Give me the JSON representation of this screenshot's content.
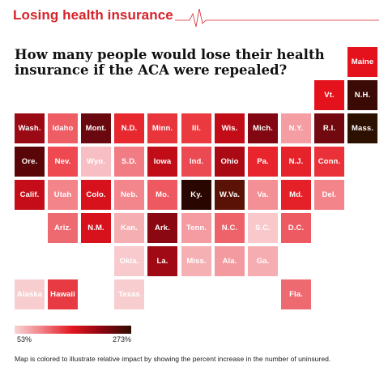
{
  "header": {
    "section_title": "Losing health insurance",
    "headline_line1": "How many people would lose their health",
    "headline_line2": "insurance if the ACA were repealed?"
  },
  "legend": {
    "min_label": "53%",
    "max_label": "273%"
  },
  "caption": "Map is colored to illustrate relative impact by showing the percent increase in the number of uninsured.",
  "map": {
    "tiles": [
      {
        "label": "Maine",
        "col": 10,
        "row": 0,
        "color": "#e3121c"
      },
      {
        "label": "Vt.",
        "col": 9,
        "row": 1,
        "color": "#e3121c"
      },
      {
        "label": "N.H.",
        "col": 10,
        "row": 1,
        "color": "#3c0a05"
      },
      {
        "label": "Wash.",
        "col": 0,
        "row": 2,
        "color": "#9a0a14"
      },
      {
        "label": "Idaho",
        "col": 1,
        "row": 2,
        "color": "#ee5c64"
      },
      {
        "label": "Mont.",
        "col": 2,
        "row": 2,
        "color": "#6a0810"
      },
      {
        "label": "N.D.",
        "col": 3,
        "row": 2,
        "color": "#e8282f"
      },
      {
        "label": "Minn.",
        "col": 4,
        "row": 2,
        "color": "#e8353c"
      },
      {
        "label": "Ill.",
        "col": 5,
        "row": 2,
        "color": "#ea3a40"
      },
      {
        "label": "Wis.",
        "col": 6,
        "row": 2,
        "color": "#c20d18"
      },
      {
        "label": "Mich.",
        "col": 7,
        "row": 2,
        "color": "#820712"
      },
      {
        "label": "N.Y.",
        "col": 8,
        "row": 2,
        "color": "#f49ea3"
      },
      {
        "label": "R.I.",
        "col": 9,
        "row": 2,
        "color": "#720810"
      },
      {
        "label": "Mass.",
        "col": 10,
        "row": 2,
        "color": "#2c1000"
      },
      {
        "label": "Ore.",
        "col": 0,
        "row": 3,
        "color": "#5a0608"
      },
      {
        "label": "Nev.",
        "col": 1,
        "row": 3,
        "color": "#ee4850"
      },
      {
        "label": "Wyo.",
        "col": 2,
        "row": 3,
        "color": "#f7bfc3"
      },
      {
        "label": "S.D.",
        "col": 3,
        "row": 3,
        "color": "#f27c83"
      },
      {
        "label": "Iowa",
        "col": 4,
        "row": 3,
        "color": "#c00d18"
      },
      {
        "label": "Ind.",
        "col": 5,
        "row": 3,
        "color": "#ec4a52"
      },
      {
        "label": "Ohio",
        "col": 6,
        "row": 3,
        "color": "#aa0a14"
      },
      {
        "label": "Pa.",
        "col": 7,
        "row": 3,
        "color": "#e8252d"
      },
      {
        "label": "N.J.",
        "col": 8,
        "row": 3,
        "color": "#e6222a"
      },
      {
        "label": "Conn.",
        "col": 9,
        "row": 3,
        "color": "#ea3038"
      },
      {
        "label": "Calif.",
        "col": 0,
        "row": 4,
        "color": "#c40d18"
      },
      {
        "label": "Utah",
        "col": 1,
        "row": 4,
        "color": "#f2848a"
      },
      {
        "label": "Colo.",
        "col": 2,
        "row": 4,
        "color": "#d8121c"
      },
      {
        "label": "Neb.",
        "col": 3,
        "row": 4,
        "color": "#f2868c"
      },
      {
        "label": "Mo.",
        "col": 4,
        "row": 4,
        "color": "#ee5860"
      },
      {
        "label": "Ky.",
        "col": 5,
        "row": 4,
        "color": "#2a0600"
      },
      {
        "label": "W.Va.",
        "col": 6,
        "row": 4,
        "color": "#5a1206"
      },
      {
        "label": "Va.",
        "col": 7,
        "row": 4,
        "color": "#f29096"
      },
      {
        "label": "Md.",
        "col": 8,
        "row": 4,
        "color": "#e42028"
      },
      {
        "label": "Del.",
        "col": 9,
        "row": 4,
        "color": "#f2848a"
      },
      {
        "label": "Ariz.",
        "col": 1,
        "row": 5,
        "color": "#ee6a71"
      },
      {
        "label": "N.M.",
        "col": 2,
        "row": 5,
        "color": "#d8121c"
      },
      {
        "label": "Kan.",
        "col": 3,
        "row": 5,
        "color": "#f5aeb2"
      },
      {
        "label": "Ark.",
        "col": 4,
        "row": 5,
        "color": "#8a0812"
      },
      {
        "label": "Tenn.",
        "col": 5,
        "row": 5,
        "color": "#f49ca1"
      },
      {
        "label": "N.C.",
        "col": 6,
        "row": 5,
        "color": "#ee6269"
      },
      {
        "label": "S.C.",
        "col": 7,
        "row": 5,
        "color": "#f8c8cb"
      },
      {
        "label": "D.C.",
        "col": 8,
        "row": 5,
        "color": "#ee5a62"
      },
      {
        "label": "Okla.",
        "col": 3,
        "row": 6,
        "color": "#f8cacd"
      },
      {
        "label": "La.",
        "col": 4,
        "row": 6,
        "color": "#a00a14"
      },
      {
        "label": "Miss.",
        "col": 5,
        "row": 6,
        "color": "#f5b0b4"
      },
      {
        "label": "Ala.",
        "col": 6,
        "row": 6,
        "color": "#f39aa0"
      },
      {
        "label": "Ga.",
        "col": 7,
        "row": 6,
        "color": "#f5adb2"
      },
      {
        "label": "Alaska",
        "col": 0,
        "row": 7,
        "color": "#f8cdd0"
      },
      {
        "label": "Hawaii",
        "col": 1,
        "row": 7,
        "color": "#e83a42"
      },
      {
        "label": "Texas",
        "col": 3,
        "row": 7,
        "color": "#f8cdd0"
      },
      {
        "label": "Fla.",
        "col": 8,
        "row": 7,
        "color": "#ee6a71"
      }
    ]
  }
}
